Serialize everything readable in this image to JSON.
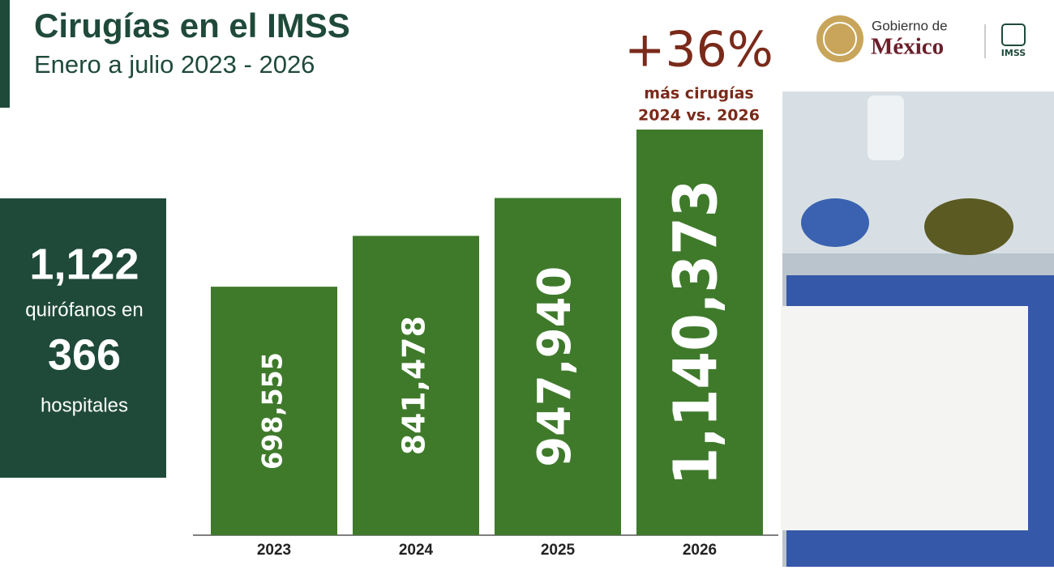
{
  "header": {
    "title": "Cirugías en el IMSS",
    "subtitle": "Enero a julio 2023 - 2026"
  },
  "logo": {
    "line1": "Gobierno de",
    "line2": "México",
    "imss": "IMSS"
  },
  "side_panel": {
    "operating_rooms": "1,122",
    "text1": "quirófanos en",
    "hospitals": "366",
    "text2": "hospitales"
  },
  "chart_data": {
    "type": "bar",
    "categories": [
      "2023",
      "2024",
      "2025",
      "2026"
    ],
    "values": [
      698555,
      841478,
      947940,
      1140373
    ],
    "value_labels": [
      "698,555",
      "841,478",
      "947,940",
      "1,140,373"
    ],
    "color": "#3f7a2b",
    "annotation": {
      "headline": "+36%",
      "line1": "más cirugías",
      "line2": "2024 vs. 2026"
    }
  }
}
